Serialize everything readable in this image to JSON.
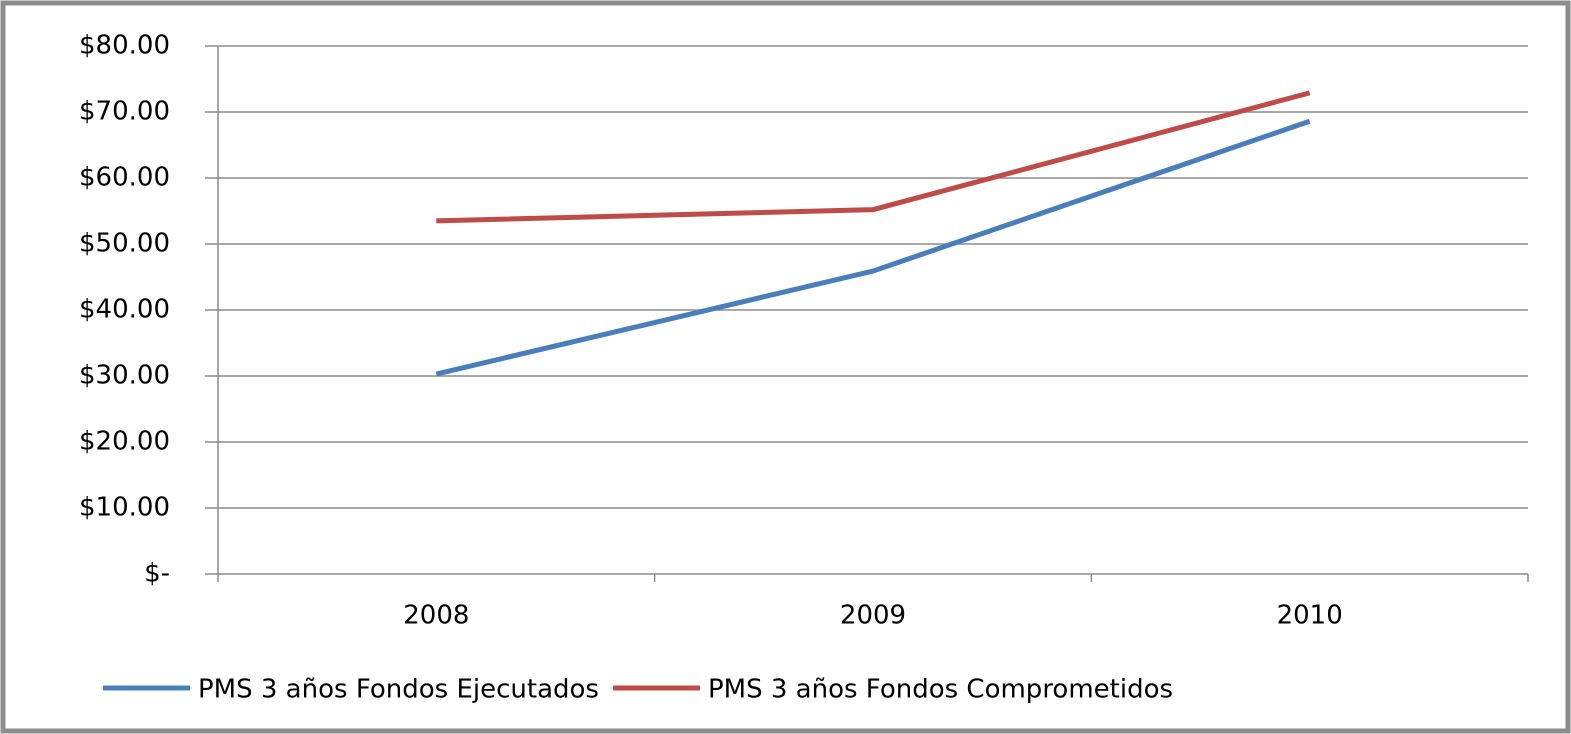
{
  "chart_data": {
    "type": "line",
    "categories": [
      "2008",
      "2009",
      "2010"
    ],
    "series": [
      {
        "name": "PMS 3 años Fondos Ejecutados",
        "color": "#4a7ebb",
        "values": [
          30.3,
          45.9,
          68.6
        ]
      },
      {
        "name": "PMS 3 años Fondos Comprometidos",
        "color": "#be4b48",
        "values": [
          53.5,
          55.2,
          72.9
        ]
      }
    ],
    "ylim": [
      0,
      80
    ],
    "yticks": [
      {
        "value": 0,
        "label": "$-"
      },
      {
        "value": 10,
        "label": "$10.00"
      },
      {
        "value": 20,
        "label": "$20.00"
      },
      {
        "value": 30,
        "label": "$30.00"
      },
      {
        "value": 40,
        "label": "$40.00"
      },
      {
        "value": 50,
        "label": "$50.00"
      },
      {
        "value": 60,
        "label": "$60.00"
      },
      {
        "value": 70,
        "label": "$70.00"
      },
      {
        "value": 80,
        "label": "$80.00"
      }
    ],
    "grid": true,
    "legend": "bottom"
  }
}
